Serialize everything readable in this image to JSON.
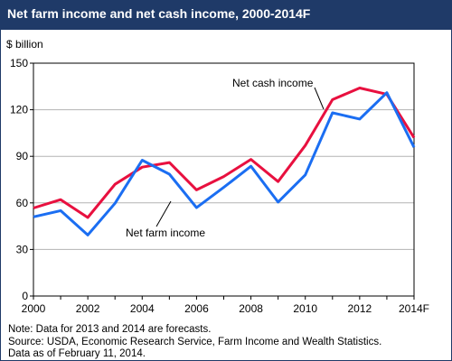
{
  "header": {
    "title": "Net farm income and net cash income, 2000-2014F"
  },
  "colors": {
    "header_bg": "#1f3a68",
    "net_cash_income": "#e8103f",
    "net_farm_income": "#1b6ef2",
    "grid": "#b3b3b3"
  },
  "chart_data": {
    "type": "line",
    "title": "Net farm income and net cash income, 2000-2014F",
    "ylabel": "$ billion",
    "xlabel": "",
    "ylim": [
      0,
      150
    ],
    "yticks": [
      0,
      30,
      60,
      90,
      120,
      150
    ],
    "x": [
      2000,
      2001,
      2002,
      2003,
      2004,
      2005,
      2006,
      2007,
      2008,
      2009,
      2010,
      2011,
      2012,
      2013,
      2014
    ],
    "xlim": [
      2000,
      2014
    ],
    "xticks": [
      2000,
      2002,
      2004,
      2006,
      2008,
      2010,
      2012,
      2014
    ],
    "xtick_labels": [
      "2000",
      "2002",
      "2004",
      "2006",
      "2008",
      "2010",
      "2012",
      "2014F"
    ],
    "grid": "horizontal",
    "series": [
      {
        "name": "Net cash income",
        "color": "#e8103f",
        "values": [
          56.7,
          62.1,
          50.6,
          72.0,
          83.0,
          86.0,
          68.4,
          77.0,
          88.0,
          73.7,
          97.0,
          126.5,
          134.0,
          130.0,
          102.0
        ]
      },
      {
        "name": "Net farm income",
        "color": "#1b6ef2",
        "values": [
          51.0,
          55.0,
          39.3,
          59.7,
          87.5,
          78.5,
          56.9,
          70.0,
          83.6,
          60.5,
          78.0,
          118.0,
          114.0,
          131.0,
          95.8
        ]
      }
    ]
  },
  "notes": [
    "Note: Data for 2013 and 2014 are forecasts.",
    "Source: USDA, Economic Research Service, Farm Income and Wealth Statistics.",
    "Data as of February 11, 2014."
  ]
}
